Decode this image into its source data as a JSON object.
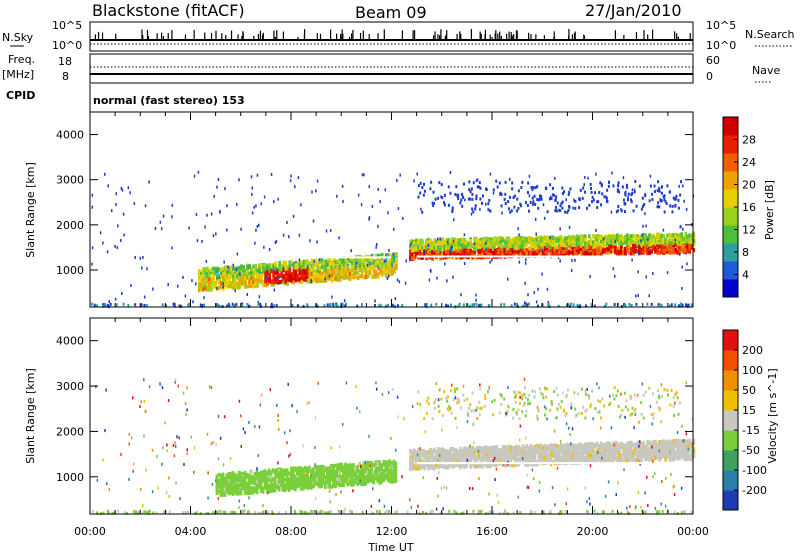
{
  "header": {
    "station": "Blackstone (fitACF)",
    "beam": "Beam 09",
    "date": "27/Jan/2010"
  },
  "status_panels": {
    "nsky_label": "N.Sky",
    "nsky_ticks": [
      "10^5",
      "10^0"
    ],
    "nsearch_label": "N.Search",
    "nsearch_ticks": [
      "10^5",
      "10^0"
    ],
    "freq_label": "Freq.",
    "freq_unit": "[MHz]",
    "freq_ticks": [
      "18",
      "8"
    ],
    "nave_label": "Nave",
    "nave_ticks": [
      "60",
      "0"
    ],
    "cpid_label": "CPID",
    "cpid_text": "normal (fast stereo) 153"
  },
  "chart_data": [
    {
      "type": "heatmap",
      "name": "power",
      "ylabel": "Slant Range [km]",
      "yticks": [
        "4000",
        "3000",
        "2000",
        "1000"
      ],
      "ylim": [
        180,
        4500
      ],
      "xlim": [
        0,
        24
      ],
      "colorbar": {
        "label": "Power [dB]",
        "ticks": [
          "28",
          "24",
          "20",
          "16",
          "12",
          "8",
          "4"
        ],
        "colors": [
          "#0000cc",
          "#1e5adc",
          "#2aa0a0",
          "#4dbf3a",
          "#9ad01e",
          "#e8d000",
          "#f0a000",
          "#f06000",
          "#e82000",
          "#d00000"
        ],
        "range": [
          0,
          30
        ]
      },
      "regions": [
        {
          "label": "echo band early",
          "x": [
            4.3,
            12.2
          ],
          "y_center_start": 750,
          "y_center_end": 1150,
          "value_dB": 14
        },
        {
          "label": "strong core",
          "x": [
            7.0,
            8.6
          ],
          "y_center_start": 850,
          "y_center_end": 900,
          "value_dB": 28
        },
        {
          "label": "echo band late",
          "x": [
            12.7,
            24
          ],
          "y_center_start": 1400,
          "y_center_end": 1600,
          "value_dB": 22
        },
        {
          "label": "far range scatter",
          "x": [
            13,
            23.5
          ],
          "y_center_start": 2500,
          "y_center_end": 2700,
          "value_dB": 6
        }
      ]
    },
    {
      "type": "heatmap",
      "name": "velocity",
      "ylabel": "Slant Range [km]",
      "yticks": [
        "4000",
        "3000",
        "2000",
        "1000"
      ],
      "ylim": [
        180,
        4500
      ],
      "xlim": [
        0,
        24
      ],
      "colorbar": {
        "label": "Velocity [m s^-1]",
        "ticks": [
          "200",
          "100",
          "50",
          "15",
          "-15",
          "-50",
          "-100",
          "-200"
        ],
        "colors": [
          "#1e3cb4",
          "#2a80a8",
          "#3fa060",
          "#7ad03a",
          "#c8c8c0",
          "#f0c000",
          "#f09000",
          "#f05000",
          "#e01010"
        ],
        "range": [
          -250,
          250
        ]
      },
      "regions": [
        {
          "label": "echo band early",
          "x": [
            5.0,
            12.2
          ],
          "y_center_start": 800,
          "y_center_end": 1150,
          "value_ms": -60
        },
        {
          "label": "echo band late",
          "x": [
            12.7,
            24
          ],
          "y_center_start": 1350,
          "y_center_end": 1600,
          "value_ms": 0
        }
      ]
    }
  ],
  "x_axis": {
    "ticks": [
      "00:00",
      "04:00",
      "08:00",
      "12:00",
      "16:00",
      "20:00",
      "00:00"
    ],
    "label": "Time UT"
  }
}
